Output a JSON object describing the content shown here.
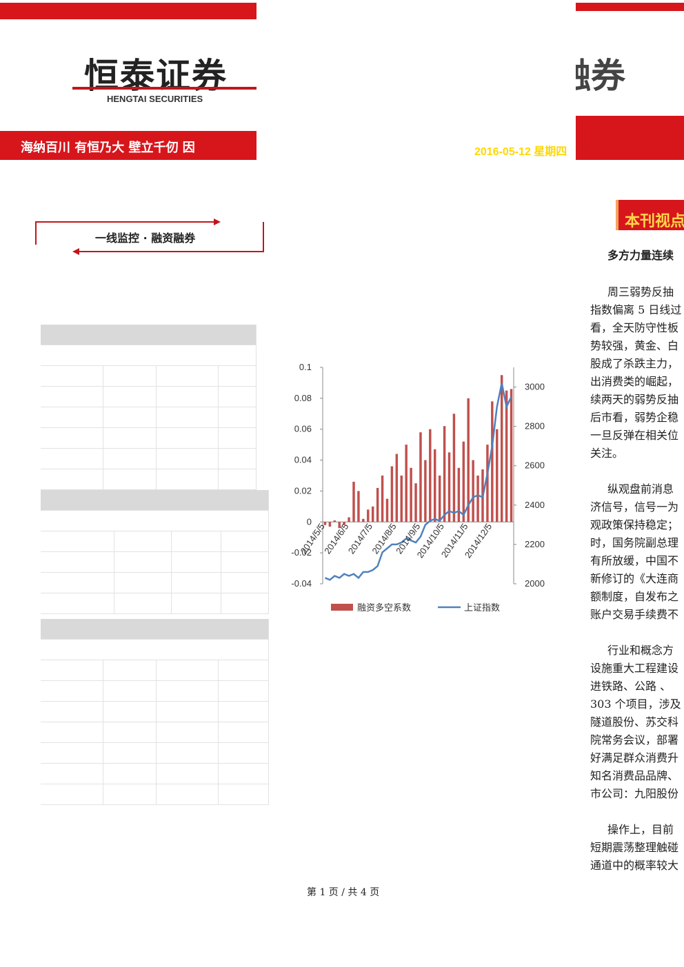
{
  "header": {
    "logo": "恒泰证券",
    "logo_en": "HENGTAI SECURITIES",
    "slogan": "海纳百川 有恒乃大 壁立千仞 因",
    "brand_right": "融券",
    "date": "2016-05-12 星期四"
  },
  "box_title": "一线监控 · 融资融券",
  "chart_data": {
    "type": "bar-line",
    "categories": [
      "2014/5/5",
      null,
      null,
      null,
      null,
      "2014/6/5",
      null,
      null,
      null,
      null,
      "2014/7/5",
      null,
      null,
      null,
      null,
      "2014/8/5",
      null,
      null,
      null,
      null,
      "2014/9/5",
      null,
      null,
      null,
      null,
      "2014/10/5",
      null,
      null,
      null,
      null,
      "2014/11/5",
      null,
      null,
      null,
      null,
      "2014/12/5",
      null,
      null,
      null,
      null
    ],
    "series": [
      {
        "name": "融资多空系数",
        "color": "#c0504d",
        "values": [
          -0.002,
          -0.003,
          0.001,
          -0.004,
          -0.002,
          0.003,
          0.026,
          0.02,
          0.002,
          0.008,
          0.01,
          0.022,
          0.03,
          0.015,
          0.036,
          0.044,
          0.03,
          0.05,
          0.035,
          0.025,
          0.058,
          0.04,
          0.06,
          0.047,
          0.03,
          0.062,
          0.045,
          0.07,
          0.035,
          0.052,
          0.08,
          0.04,
          0.03,
          0.034,
          0.05,
          0.078,
          0.06,
          0.095,
          0.085,
          0.086
        ]
      },
      {
        "name": "上证指数",
        "color": "#4f81bd",
        "axis": "y2",
        "values": [
          2030,
          2020,
          2040,
          2030,
          2050,
          2040,
          2050,
          2030,
          2060,
          2060,
          2070,
          2090,
          2160,
          2180,
          2200,
          2200,
          2210,
          2230,
          2220,
          2210,
          2240,
          2300,
          2320,
          2330,
          2320,
          2350,
          2370,
          2360,
          2370,
          2350,
          2400,
          2440,
          2450,
          2440,
          2560,
          2700,
          2900,
          3020,
          2900,
          2950
        ]
      }
    ],
    "ylim": [
      -0.04,
      0.1
    ],
    "yticks": [
      -0.04,
      -0.02,
      0,
      0.02,
      0.04,
      0.06,
      0.08,
      0.1
    ],
    "y2lim": [
      2000,
      3100
    ],
    "y2ticks": [
      2000,
      2200,
      2400,
      2600,
      2800,
      3000
    ]
  },
  "right_column": {
    "heading": "本刊视点",
    "subtitle": "多方力量连续",
    "paragraphs": [
      [
        "周三弱势反抽",
        "指数偏离 5 日线过",
        "看，全天防守性板",
        "势较强，黄金、白",
        "股成了杀跌主力，",
        "出消费类的崛起，",
        "续两天的弱势反抽",
        "后市看，弱势企稳",
        "一旦反弹在相关位",
        "关注。"
      ],
      [
        "纵观盘前消息",
        "济信号，信号一为",
        "观政策保持稳定；",
        "时，国务院副总理",
        "有所放缓，中国不",
        "新修订的《大连商",
        "额制度，自发布之",
        "账户交易手续费不"
      ],
      [
        "行业和概念方",
        "设施重大工程建设",
        "进铁路、公路 、",
        "303 个项目，涉及",
        "隧道股份、苏交科",
        "院常务会议，部署",
        "好满足群众消费升",
        "知名消费品品牌、",
        "市公司：九阳股份"
      ],
      [
        "操作上，目前",
        "短期震荡整理触碰",
        "通道中的概率较大"
      ]
    ]
  },
  "footer": "第 1 页 / 共 4 页"
}
